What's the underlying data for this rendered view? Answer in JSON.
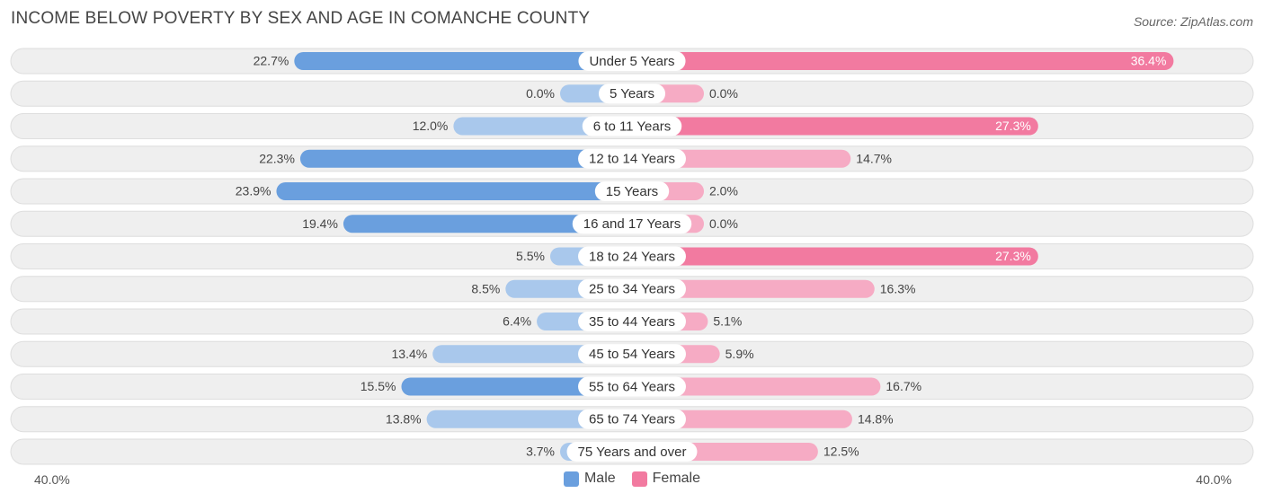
{
  "title": "INCOME BELOW POVERTY BY SEX AND AGE IN COMANCHE COUNTY",
  "source": "Source: ZipAtlas.com",
  "colors": {
    "male_strong": "#6a9fde",
    "male_light": "#a9c8ec",
    "female_strong": "#f27aa0",
    "female_light": "#f6abc4",
    "row_bg": "#efefef",
    "row_border": "#dedede"
  },
  "chart_data": {
    "type": "bar",
    "orientation": "horizontal-diverging",
    "title": "INCOME BELOW POVERTY BY SEX AND AGE IN COMANCHE COUNTY",
    "categories": [
      "Under 5 Years",
      "5 Years",
      "6 to 11 Years",
      "12 to 14 Years",
      "15 Years",
      "16 and 17 Years",
      "18 to 24 Years",
      "25 to 34 Years",
      "35 to 44 Years",
      "45 to 54 Years",
      "55 to 64 Years",
      "65 to 74 Years",
      "75 Years and over"
    ],
    "series": [
      {
        "name": "Male",
        "values": [
          22.7,
          0.0,
          12.0,
          22.3,
          23.9,
          19.4,
          5.5,
          8.5,
          6.4,
          13.4,
          15.5,
          13.8,
          3.7
        ],
        "labels": [
          "22.7%",
          "0.0%",
          "12.0%",
          "22.3%",
          "23.9%",
          "19.4%",
          "5.5%",
          "8.5%",
          "6.4%",
          "13.4%",
          "15.5%",
          "13.8%",
          "3.7%"
        ]
      },
      {
        "name": "Female",
        "values": [
          36.4,
          0.0,
          27.3,
          14.7,
          2.0,
          0.0,
          27.3,
          16.3,
          5.1,
          5.9,
          16.7,
          14.8,
          12.5
        ],
        "labels": [
          "36.4%",
          "0.0%",
          "27.3%",
          "14.7%",
          "2.0%",
          "0.0%",
          "27.3%",
          "16.3%",
          "5.1%",
          "5.9%",
          "16.7%",
          "14.8%",
          "12.5%"
        ]
      }
    ],
    "xlim": [
      -40,
      40
    ],
    "axis_min_label": "40.0%",
    "axis_max_label": "40.0%",
    "legend": [
      "Male",
      "Female"
    ],
    "legend_position": "bottom-center"
  }
}
